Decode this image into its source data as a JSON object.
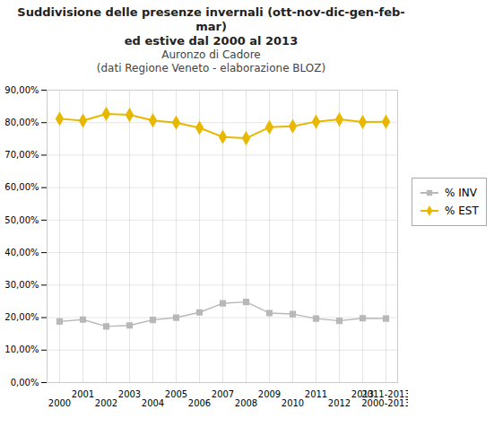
{
  "chart_data": {
    "type": "line",
    "title": [
      "Suddivisione delle presenze invernali (ott-nov-dic-gen-feb-mar)",
      "ed estive dal 2000 al 2013"
    ],
    "subtitle": [
      "Auronzo di Cadore",
      "(dati Regione Veneto - elaborazione BLOZ)"
    ],
    "categories": [
      "2000",
      "2001",
      "2002",
      "2003",
      "2004",
      "2005",
      "2006",
      "2007",
      "2008",
      "2009",
      "2010",
      "2011",
      "2012",
      "2013",
      "2011-2013\n2000-2013"
    ],
    "series": [
      {
        "name": "% INV",
        "color": "#b8b8b8",
        "marker": "square",
        "values": [
          0.188,
          0.194,
          0.173,
          0.176,
          0.193,
          0.2,
          0.216,
          0.244,
          0.248,
          0.214,
          0.211,
          0.197,
          0.19,
          0.198,
          0.197
        ]
      },
      {
        "name": "% EST",
        "color": "#e8b800",
        "marker": "diamond",
        "values": [
          0.812,
          0.806,
          0.827,
          0.824,
          0.807,
          0.8,
          0.784,
          0.756,
          0.752,
          0.786,
          0.789,
          0.803,
          0.81,
          0.802,
          0.803
        ]
      }
    ],
    "ylim": [
      0.0,
      0.9
    ],
    "yticks": [
      {
        "value": 0.0,
        "label": "0,00%"
      },
      {
        "value": 0.1,
        "label": "10,00%"
      },
      {
        "value": 0.2,
        "label": "20,00%"
      },
      {
        "value": 0.3,
        "label": "30,00%"
      },
      {
        "value": 0.4,
        "label": "40,00%"
      },
      {
        "value": 0.5,
        "label": "50,00%"
      },
      {
        "value": 0.6,
        "label": "60,00%"
      },
      {
        "value": 0.7,
        "label": "70,00%"
      },
      {
        "value": 0.8,
        "label": "80,00%"
      },
      {
        "value": 0.9,
        "label": "90,00%"
      }
    ],
    "grid": true,
    "legend": "right"
  }
}
